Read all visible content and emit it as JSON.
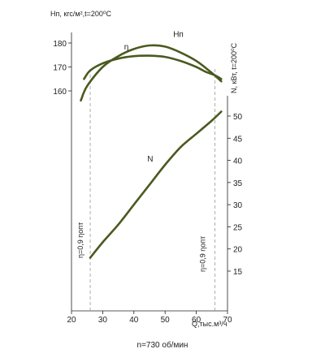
{
  "chart_data": {
    "type": "line",
    "left_axis_title": "Hп, кгс/м²,t=200⁰C",
    "right_axis_title": "N, кВт, t=200⁰C",
    "x_axis_title": "Q,тыс.м³/ч",
    "footer": "n=730 об/мин",
    "xlim": [
      20,
      70
    ],
    "x_ticks": [
      20,
      30,
      40,
      50,
      60,
      70
    ],
    "h_ylim": [
      150,
      185
    ],
    "h_ticks": [
      160,
      170,
      180
    ],
    "n_ylim": [
      10,
      54
    ],
    "n_ticks": [
      15,
      20,
      25,
      30,
      35,
      40,
      45,
      50
    ],
    "limit_lines": [
      {
        "x": 26,
        "label": "η=0,9 ηопт"
      },
      {
        "x": 66,
        "label": "η=0,9 ηопт"
      }
    ],
    "series": [
      {
        "name": "Hп",
        "axis": "h",
        "x": [
          23,
          25,
          30,
          35,
          40,
          45,
          50,
          55,
          60,
          65,
          68
        ],
        "y": [
          156,
          162,
          170,
          174.5,
          177.5,
          179,
          178.5,
          176,
          172.5,
          167.5,
          164
        ]
      },
      {
        "name": "η",
        "axis": "eta",
        "x": [
          24,
          26,
          30,
          35,
          40,
          45,
          50,
          55,
          60,
          63,
          66,
          68
        ],
        "y": [
          165,
          168.5,
          171.5,
          173.5,
          174.5,
          174.7,
          174.2,
          172.5,
          170,
          168,
          166.5,
          165
        ]
      },
      {
        "name": "N",
        "axis": "n",
        "x": [
          26,
          30,
          35,
          40,
          45,
          50,
          55,
          60,
          65,
          68
        ],
        "y": [
          18,
          21.5,
          25.5,
          30,
          34.5,
          39,
          43,
          46,
          49,
          51
        ]
      }
    ],
    "curve_labels": [
      {
        "series": "Hп",
        "text": "Hп"
      },
      {
        "series": "η",
        "text": "η"
      },
      {
        "series": "N",
        "text": "N"
      }
    ]
  }
}
